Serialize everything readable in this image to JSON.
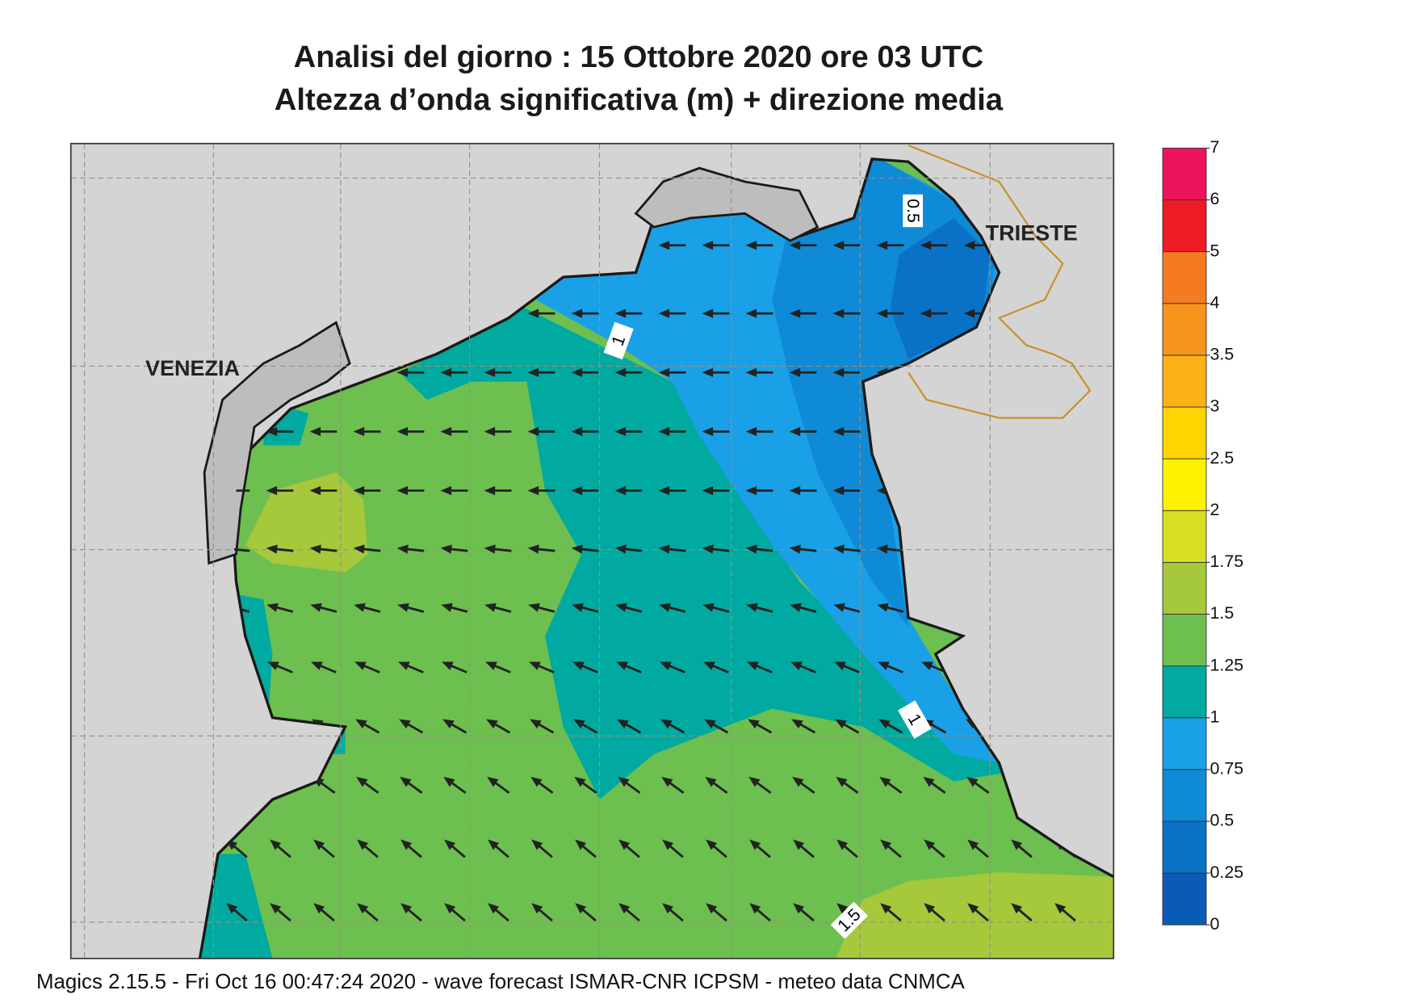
{
  "header": {
    "title": "Analisi del giorno :  15  Ottobre  2020   ore 03 UTC",
    "subtitle": "Altezza d’onda significativa (m) + direzione media"
  },
  "places": [
    "VENEZIA",
    "TRIESTE"
  ],
  "contour_labels": [
    "0.5",
    "1",
    "1",
    "1.5"
  ],
  "colorbar": {
    "ticks": [
      0,
      0.25,
      0.5,
      0.75,
      1,
      1.25,
      1.5,
      1.75,
      2,
      2.5,
      3,
      3.5,
      4,
      5,
      6,
      7
    ],
    "colors": [
      "#0a5bb5",
      "#0a72c6",
      "#0f8ad6",
      "#1aa0e6",
      "#00aaa0",
      "#6dbf4f",
      "#a6c83b",
      "#d6df22",
      "#fff200",
      "#ffd400",
      "#fcb316",
      "#f7941d",
      "#f47b20",
      "#ed1c24",
      "#ed145b"
    ]
  },
  "footer": "Magics 2.15.5 - Fri Oct 16 00:47:24 2020 - wave forecast  ISMAR-CNR  ICPSM - meteo data   CNMCA"
}
